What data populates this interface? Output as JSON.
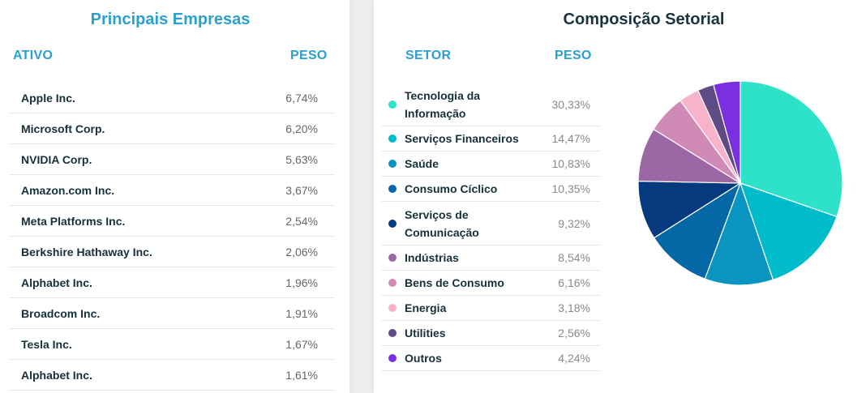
{
  "companies_panel": {
    "title": "Principais Empresas",
    "col_asset": "ATIVO",
    "col_weight": "PESO",
    "rows": [
      {
        "name": "Apple Inc.",
        "weight": "6,74%"
      },
      {
        "name": "Microsoft Corp.",
        "weight": "6,20%"
      },
      {
        "name": "NVIDIA Corp.",
        "weight": "5,63%"
      },
      {
        "name": "Amazon.com Inc.",
        "weight": "3,67%"
      },
      {
        "name": "Meta Platforms Inc.",
        "weight": "2,54%"
      },
      {
        "name": "Berkshire Hathaway Inc.",
        "weight": "2,06%"
      },
      {
        "name": "Alphabet Inc.",
        "weight": "1,96%"
      },
      {
        "name": "Broadcom Inc.",
        "weight": "1,91%"
      },
      {
        "name": "Tesla Inc.",
        "weight": "1,67%"
      },
      {
        "name": "Alphabet Inc.",
        "weight": "1,61%"
      }
    ]
  },
  "sectors_panel": {
    "title": "Composição Setorial",
    "col_sector": "SETOR",
    "col_weight": "PESO"
  },
  "chart_data": {
    "type": "pie",
    "title": "Composição Setorial",
    "slices": [
      {
        "label": "Tecnologia da Informação",
        "value": 30.33,
        "display": "30,33%",
        "color": "#2de2c8"
      },
      {
        "label": "Serviços Financeiros",
        "value": 14.47,
        "display": "14,47%",
        "color": "#00bccb"
      },
      {
        "label": "Saúde",
        "value": 10.83,
        "display": "10,83%",
        "color": "#0a94c0"
      },
      {
        "label": "Consumo Cíclico",
        "value": 10.35,
        "display": "10,35%",
        "color": "#0567a6"
      },
      {
        "label": "Serviços de Comunicação",
        "value": 9.32,
        "display": "9,32%",
        "color": "#053a7e"
      },
      {
        "label": "Indústrias",
        "value": 8.54,
        "display": "8,54%",
        "color": "#9c67a5"
      },
      {
        "label": "Bens de Consumo",
        "value": 6.16,
        "display": "6,16%",
        "color": "#d08ab6"
      },
      {
        "label": "Energia",
        "value": 3.18,
        "display": "3,18%",
        "color": "#f7b3cb"
      },
      {
        "label": "Utilities",
        "value": 2.56,
        "display": "2,56%",
        "color": "#5e4b85"
      },
      {
        "label": "Outros",
        "value": 4.24,
        "display": "4,24%",
        "color": "#7b2fe0"
      }
    ]
  }
}
